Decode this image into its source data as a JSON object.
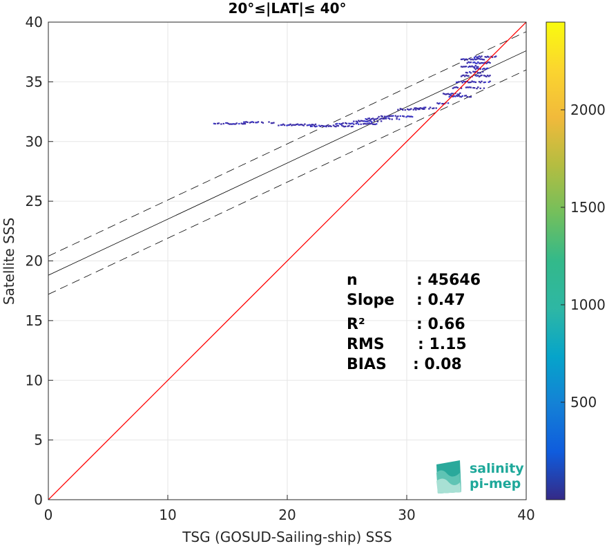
{
  "chart_data": {
    "type": "scatter",
    "title": "20°≤|LAT|≤ 40°",
    "xlabel": "TSG (GOSUD-Sailing-ship) SSS",
    "ylabel": "Satellite SSS",
    "xlim": [
      0,
      40
    ],
    "ylim": [
      0,
      40
    ],
    "xticks": [
      "0",
      "10",
      "20",
      "30",
      "40"
    ],
    "yticks": [
      "0",
      "5",
      "10",
      "15",
      "20",
      "25",
      "30",
      "35",
      "40"
    ],
    "grid": true,
    "fit_line": {
      "slope": 0.47,
      "intercept": 18.8
    },
    "fit_band_upper": {
      "slope": 0.47,
      "intercept": 20.4
    },
    "fit_band_lower": {
      "slope": 0.47,
      "intercept": 17.2
    },
    "identity_line": {
      "slope": 1,
      "intercept": 0,
      "color": "#ff0000"
    },
    "density_segments": [
      {
        "x0": 13.8,
        "x1": 16.5,
        "y": 31.5
      },
      {
        "x0": 16.3,
        "x1": 19.2,
        "y": 31.6
      },
      {
        "x0": 19.2,
        "x1": 22.5,
        "y": 31.4
      },
      {
        "x0": 21.8,
        "x1": 25.5,
        "y": 31.3
      },
      {
        "x0": 24.0,
        "x1": 27.5,
        "y": 31.5
      },
      {
        "x0": 25.5,
        "x1": 28.0,
        "y": 31.7
      },
      {
        "x0": 26.5,
        "x1": 29.5,
        "y": 31.9
      },
      {
        "x0": 27.5,
        "x1": 30.5,
        "y": 32.1
      },
      {
        "x0": 29.0,
        "x1": 31.5,
        "y": 32.7
      },
      {
        "x0": 30.5,
        "x1": 32.5,
        "y": 32.8
      },
      {
        "x0": 32.5,
        "x1": 33.5,
        "y": 33.2
      },
      {
        "x0": 33.0,
        "x1": 34.5,
        "y": 34.0
      },
      {
        "x0": 33.5,
        "x1": 35.5,
        "y": 33.8
      },
      {
        "x0": 33.8,
        "x1": 36.5,
        "y": 34.5
      },
      {
        "x0": 34.0,
        "x1": 37.0,
        "y": 35.0
      },
      {
        "x0": 34.5,
        "x1": 37.0,
        "y": 35.5
      },
      {
        "x0": 34.8,
        "x1": 36.5,
        "y": 35.8
      },
      {
        "x0": 34.5,
        "x1": 36.0,
        "y": 36.3
      },
      {
        "x0": 35.0,
        "x1": 37.0,
        "y": 36.6
      },
      {
        "x0": 35.5,
        "x1": 37.5,
        "y": 37.1
      },
      {
        "x0": 34.5,
        "x1": 36.5,
        "y": 36.9
      },
      {
        "x0": 35.5,
        "x1": 36.8,
        "y": 36.1
      }
    ],
    "colorbar": {
      "min": 0,
      "max": 2450,
      "ticks": [
        "500",
        "1000",
        "1500",
        "2000"
      ],
      "tick_values": [
        500,
        1000,
        1500,
        2000
      ],
      "colormap": "parula"
    },
    "stats": [
      {
        "label": "n",
        "value": ": 45646"
      },
      {
        "label": "Slope",
        "value": ": 0.47"
      },
      {
        "label": "R²",
        "value": ": 0.66"
      },
      {
        "label": "RMS",
        "value": ": 1.15"
      },
      {
        "label": "BIAS",
        "value": ": 0.08"
      }
    ]
  },
  "logo": {
    "line1": "salinity",
    "line2": "pi-mep"
  }
}
